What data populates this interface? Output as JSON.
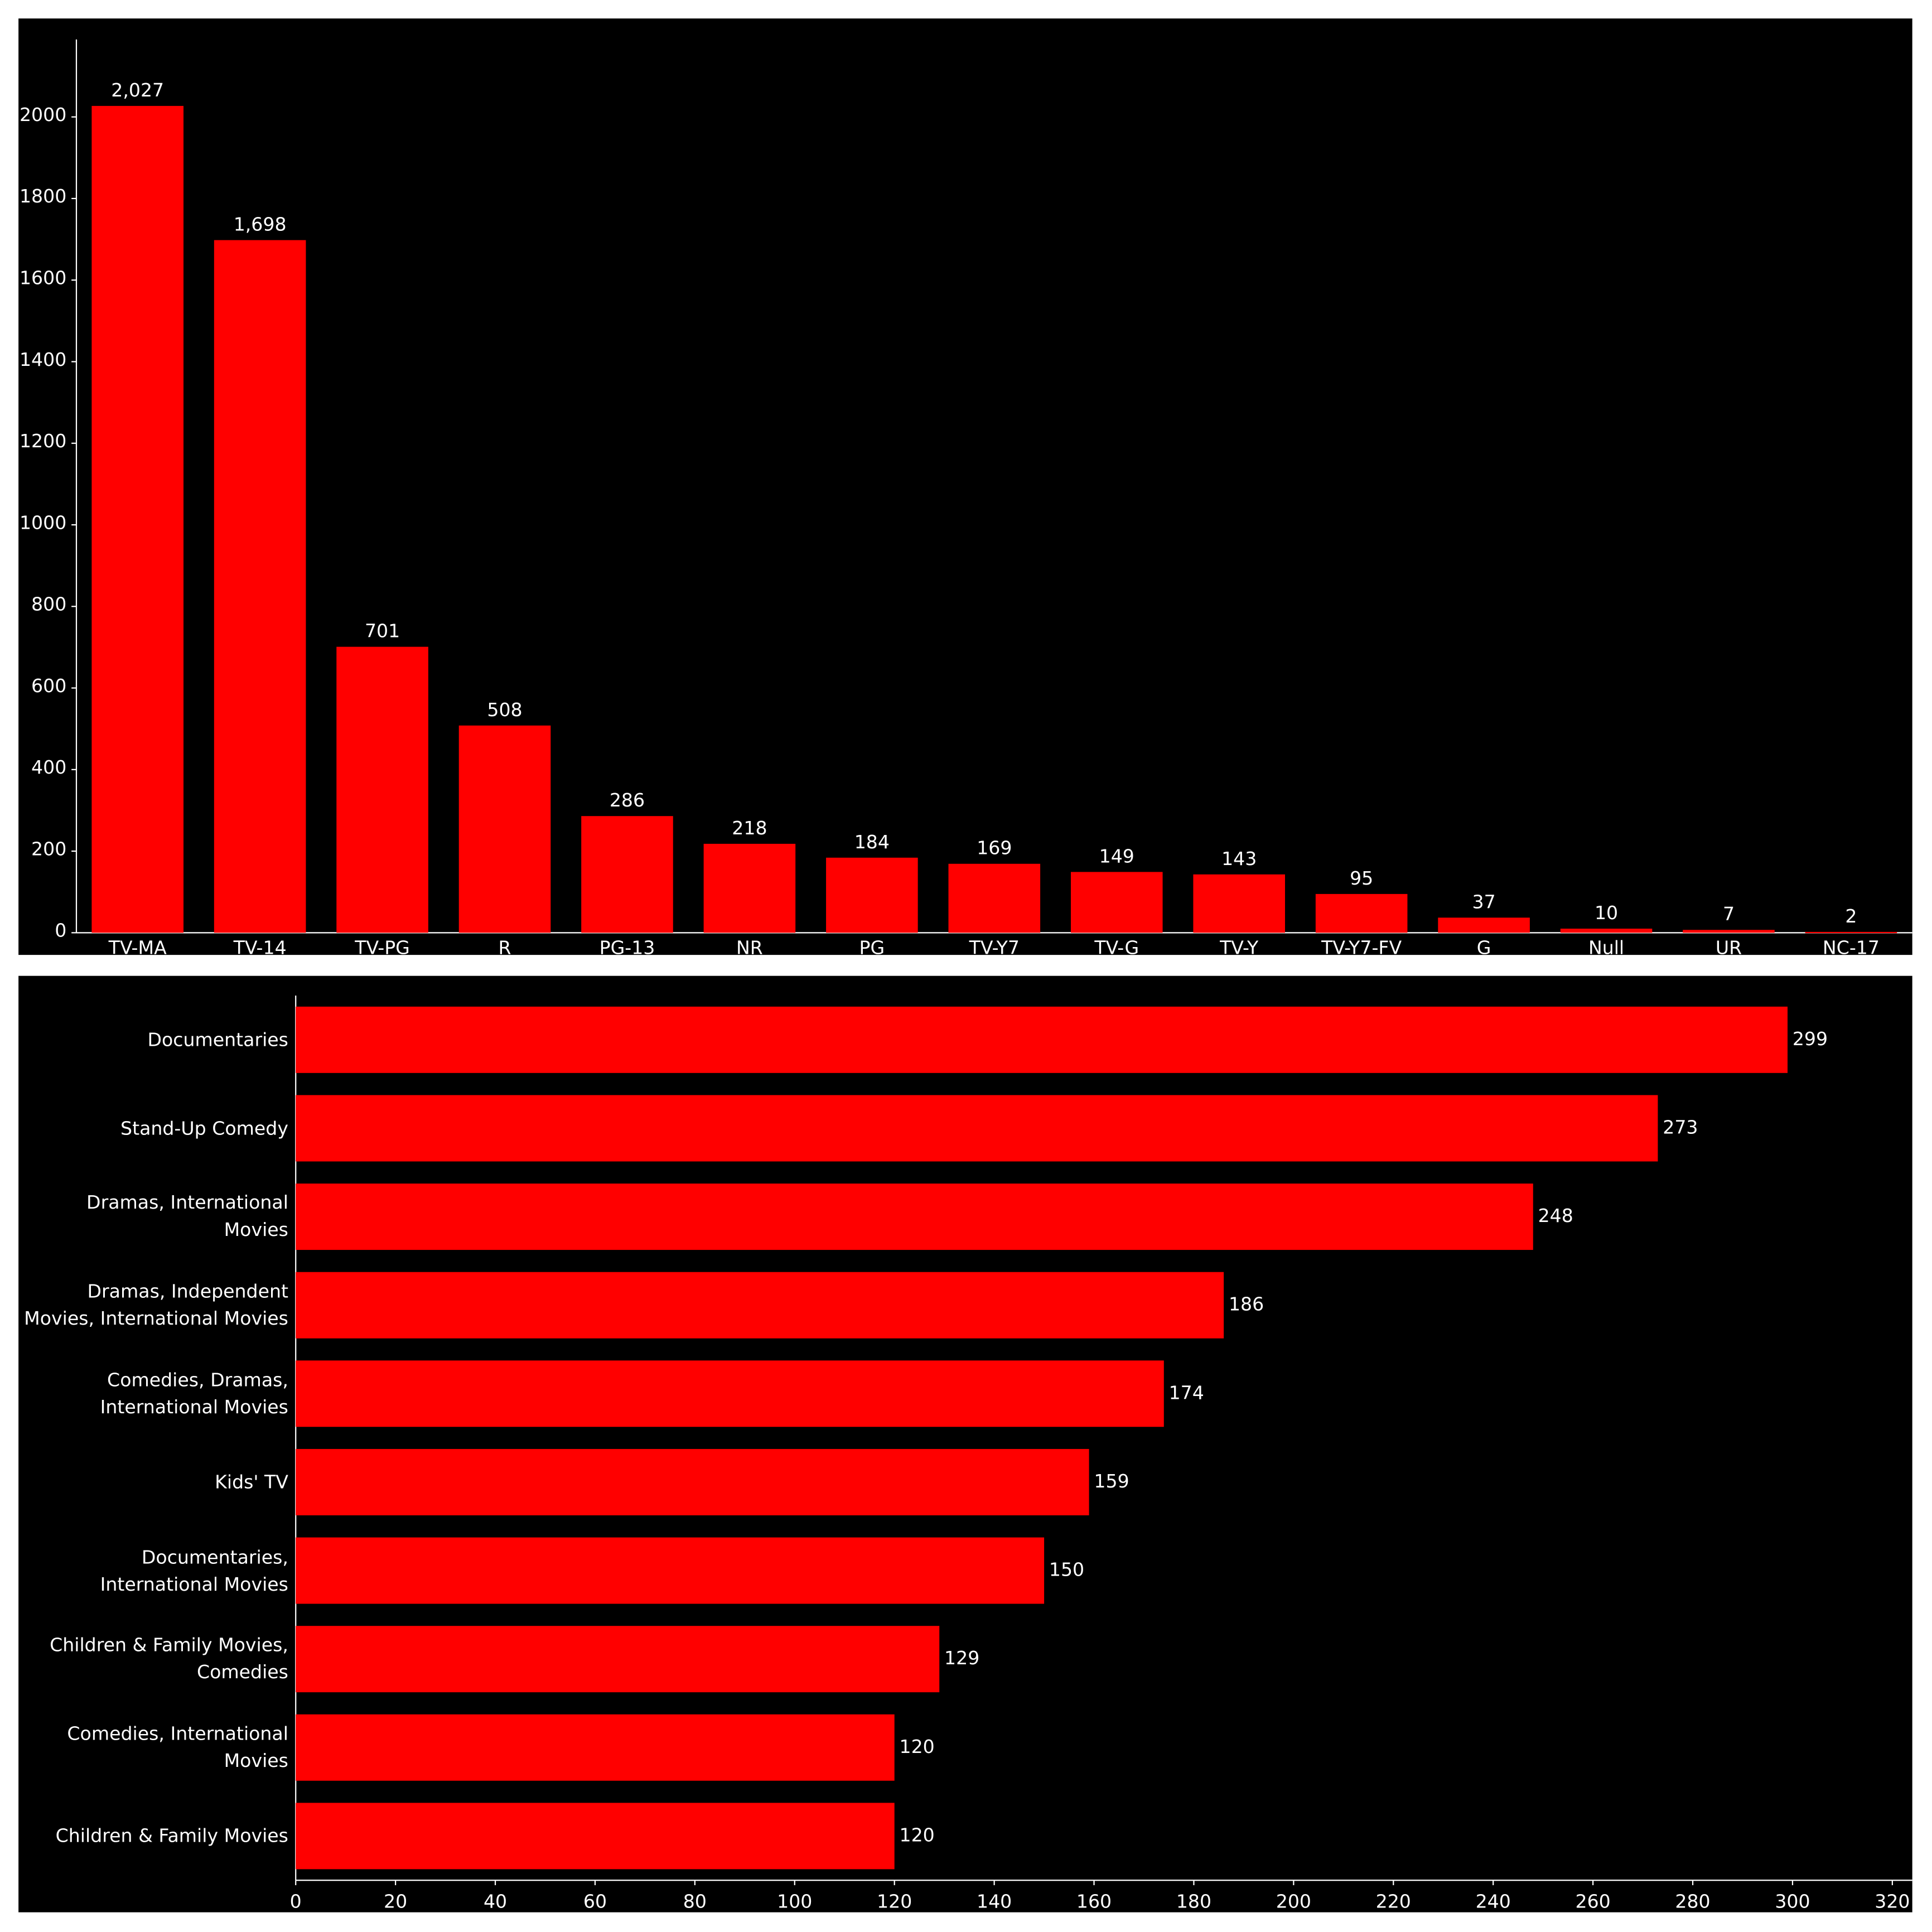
{
  "chart_data": [
    {
      "type": "bar",
      "categories": [
        "TV-MA",
        "TV-14",
        "TV-PG",
        "R",
        "PG-13",
        "NR",
        "PG",
        "TV-Y7",
        "TV-G",
        "TV-Y",
        "TV-Y7-FV",
        "G",
        "Null",
        "UR",
        "NC-17"
      ],
      "values": [
        2027,
        1698,
        701,
        508,
        286,
        218,
        184,
        169,
        149,
        143,
        95,
        37,
        10,
        7,
        2
      ],
      "value_labels": [
        "2,027",
        "1,698",
        "701",
        "508",
        "286",
        "218",
        "184",
        "169",
        "149",
        "143",
        "95",
        "37",
        "10",
        "7",
        "2"
      ],
      "color": "#ff0000",
      "ylim": [
        0,
        2190
      ],
      "yticks": [
        0,
        200,
        400,
        600,
        800,
        1000,
        1200,
        1400,
        1600,
        1800,
        2000
      ],
      "grid": false
    },
    {
      "type": "barh",
      "categories": [
        "Documentaries",
        "Stand-Up Comedy",
        "Dramas, International Movies",
        "Dramas, Independent Movies, International Movies",
        "Comedies, Dramas, International Movies",
        "Kids' TV",
        "Documentaries, International Movies",
        "Children & Family Movies, Comedies",
        "Comedies, International Movies",
        "Children & Family Movies"
      ],
      "values": [
        299,
        273,
        248,
        186,
        174,
        159,
        150,
        129,
        120,
        120
      ],
      "color": "#ff0000",
      "xlim": [
        0,
        324
      ],
      "xticks": [
        0,
        20,
        40,
        60,
        80,
        100,
        120,
        140,
        160,
        180,
        200,
        220,
        240,
        260,
        280,
        300,
        320
      ],
      "grid": false
    }
  ]
}
